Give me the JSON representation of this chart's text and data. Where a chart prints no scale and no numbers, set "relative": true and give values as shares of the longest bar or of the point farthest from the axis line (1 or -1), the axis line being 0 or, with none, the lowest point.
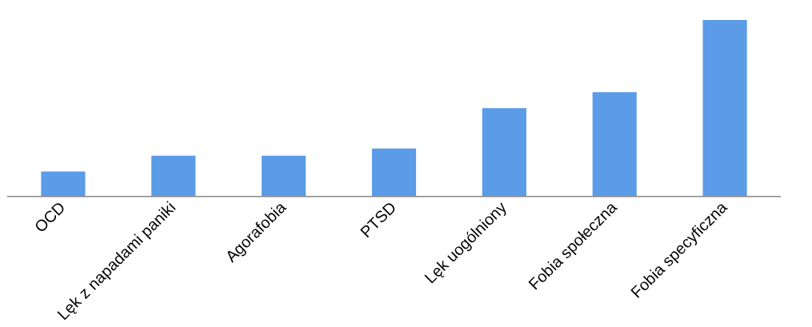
{
  "chart_data": {
    "type": "bar",
    "relative": true,
    "grid": false,
    "legend": false,
    "categories": [
      "OCD",
      "Lęk z napadami paniki",
      "Agorafobia",
      "PTSD",
      "Lęk uogólniony",
      "Fobia społeczna",
      "Fobia specyficzna"
    ],
    "values": [
      0.14,
      0.23,
      0.23,
      0.27,
      0.5,
      0.59,
      1
    ],
    "color": "#5b9be8"
  }
}
